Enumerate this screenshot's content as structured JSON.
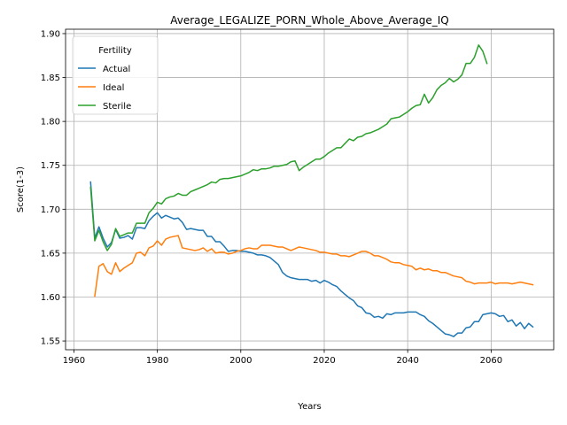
{
  "chart_data": {
    "type": "line",
    "title": "Average_LEGALIZE_PORN_Whole_Above_Average_IQ",
    "xlabel": "Years",
    "ylabel": "Score(1-3)",
    "xlim": [
      1958,
      2075
    ],
    "ylim": [
      1.54,
      1.905
    ],
    "xticks": [
      1960,
      1980,
      2000,
      2020,
      2040,
      2060
    ],
    "yticks": [
      1.55,
      1.6,
      1.65,
      1.7,
      1.75,
      1.8,
      1.85,
      1.9
    ],
    "ytick_labels": [
      "1.55",
      "1.60",
      "1.65",
      "1.70",
      "1.75",
      "1.80",
      "1.85",
      "1.90"
    ],
    "grid": true,
    "legend": {
      "title": "Fertility",
      "placement": "upper-left"
    },
    "series": [
      {
        "name": "Actual",
        "color": "#1f77b4",
        "points": [
          [
            1964,
            1.731
          ],
          [
            1965,
            1.667
          ],
          [
            1966,
            1.68
          ],
          [
            1967,
            1.667
          ],
          [
            1968,
            1.657
          ],
          [
            1969,
            1.662
          ],
          [
            1970,
            1.677
          ],
          [
            1971,
            1.667
          ],
          [
            1972,
            1.668
          ],
          [
            1973,
            1.67
          ],
          [
            1974,
            1.666
          ],
          [
            1975,
            1.679
          ],
          [
            1976,
            1.679
          ],
          [
            1977,
            1.678
          ],
          [
            1978,
            1.687
          ],
          [
            1979,
            1.692
          ],
          [
            1980,
            1.696
          ],
          [
            1981,
            1.69
          ],
          [
            1982,
            1.693
          ],
          [
            1983,
            1.691
          ],
          [
            1984,
            1.689
          ],
          [
            1985,
            1.69
          ],
          [
            1986,
            1.685
          ],
          [
            1987,
            1.677
          ],
          [
            1988,
            1.678
          ],
          [
            1989,
            1.677
          ],
          [
            1990,
            1.676
          ],
          [
            1991,
            1.676
          ],
          [
            1992,
            1.669
          ],
          [
            1993,
            1.669
          ],
          [
            1994,
            1.663
          ],
          [
            1995,
            1.663
          ],
          [
            1996,
            1.658
          ],
          [
            1997,
            1.652
          ],
          [
            1998,
            1.653
          ],
          [
            1999,
            1.653
          ],
          [
            2000,
            1.652
          ],
          [
            2001,
            1.652
          ],
          [
            2002,
            1.651
          ],
          [
            2003,
            1.65
          ],
          [
            2004,
            1.648
          ],
          [
            2005,
            1.648
          ],
          [
            2006,
            1.647
          ],
          [
            2007,
            1.645
          ],
          [
            2008,
            1.641
          ],
          [
            2009,
            1.637
          ],
          [
            2010,
            1.628
          ],
          [
            2011,
            1.624
          ],
          [
            2012,
            1.622
          ],
          [
            2013,
            1.621
          ],
          [
            2014,
            1.62
          ],
          [
            2015,
            1.62
          ],
          [
            2016,
            1.62
          ],
          [
            2017,
            1.618
          ],
          [
            2018,
            1.619
          ],
          [
            2019,
            1.616
          ],
          [
            2020,
            1.619
          ],
          [
            2021,
            1.617
          ],
          [
            2022,
            1.614
          ],
          [
            2023,
            1.612
          ],
          [
            2024,
            1.607
          ],
          [
            2025,
            1.603
          ],
          [
            2026,
            1.599
          ],
          [
            2027,
            1.596
          ],
          [
            2028,
            1.59
          ],
          [
            2029,
            1.588
          ],
          [
            2030,
            1.582
          ],
          [
            2031,
            1.581
          ],
          [
            2032,
            1.577
          ],
          [
            2033,
            1.578
          ],
          [
            2034,
            1.576
          ],
          [
            2035,
            1.581
          ],
          [
            2036,
            1.58
          ],
          [
            2037,
            1.582
          ],
          [
            2038,
            1.582
          ],
          [
            2039,
            1.582
          ],
          [
            2040,
            1.583
          ],
          [
            2041,
            1.583
          ],
          [
            2042,
            1.583
          ],
          [
            2043,
            1.58
          ],
          [
            2044,
            1.578
          ],
          [
            2045,
            1.573
          ],
          [
            2046,
            1.57
          ],
          [
            2047,
            1.566
          ],
          [
            2048,
            1.562
          ],
          [
            2049,
            1.558
          ],
          [
            2050,
            1.557
          ],
          [
            2051,
            1.555
          ],
          [
            2052,
            1.559
          ],
          [
            2053,
            1.559
          ],
          [
            2054,
            1.565
          ],
          [
            2055,
            1.566
          ],
          [
            2056,
            1.572
          ],
          [
            2057,
            1.572
          ],
          [
            2058,
            1.58
          ],
          [
            2059,
            1.581
          ],
          [
            2060,
            1.582
          ],
          [
            2061,
            1.581
          ],
          [
            2062,
            1.578
          ],
          [
            2063,
            1.579
          ],
          [
            2064,
            1.572
          ],
          [
            2065,
            1.574
          ],
          [
            2066,
            1.567
          ],
          [
            2067,
            1.571
          ],
          [
            2068,
            1.564
          ],
          [
            2069,
            1.57
          ],
          [
            2070,
            1.566
          ]
        ]
      },
      {
        "name": "Ideal",
        "color": "#ff7f0e",
        "points": [
          [
            1965,
            1.601
          ],
          [
            1966,
            1.635
          ],
          [
            1967,
            1.638
          ],
          [
            1968,
            1.629
          ],
          [
            1969,
            1.626
          ],
          [
            1970,
            1.639
          ],
          [
            1971,
            1.629
          ],
          [
            1972,
            1.633
          ],
          [
            1973,
            1.636
          ],
          [
            1974,
            1.639
          ],
          [
            1975,
            1.65
          ],
          [
            1976,
            1.651
          ],
          [
            1977,
            1.647
          ],
          [
            1978,
            1.656
          ],
          [
            1979,
            1.658
          ],
          [
            1980,
            1.664
          ],
          [
            1981,
            1.659
          ],
          [
            1982,
            1.666
          ],
          [
            1983,
            1.668
          ],
          [
            1984,
            1.669
          ],
          [
            1985,
            1.67
          ],
          [
            1986,
            1.656
          ],
          [
            1987,
            1.655
          ],
          [
            1988,
            1.654
          ],
          [
            1989,
            1.653
          ],
          [
            1990,
            1.654
          ],
          [
            1991,
            1.656
          ],
          [
            1992,
            1.652
          ],
          [
            1993,
            1.655
          ],
          [
            1994,
            1.65
          ],
          [
            1995,
            1.651
          ],
          [
            1996,
            1.651
          ],
          [
            1997,
            1.649
          ],
          [
            1998,
            1.65
          ],
          [
            1999,
            1.652
          ],
          [
            2000,
            1.653
          ],
          [
            2001,
            1.655
          ],
          [
            2002,
            1.656
          ],
          [
            2003,
            1.655
          ],
          [
            2004,
            1.655
          ],
          [
            2005,
            1.659
          ],
          [
            2006,
            1.659
          ],
          [
            2007,
            1.659
          ],
          [
            2008,
            1.658
          ],
          [
            2009,
            1.657
          ],
          [
            2010,
            1.657
          ],
          [
            2011,
            1.655
          ],
          [
            2012,
            1.653
          ],
          [
            2013,
            1.655
          ],
          [
            2014,
            1.657
          ],
          [
            2015,
            1.656
          ],
          [
            2016,
            1.655
          ],
          [
            2017,
            1.654
          ],
          [
            2018,
            1.653
          ],
          [
            2019,
            1.651
          ],
          [
            2020,
            1.651
          ],
          [
            2021,
            1.65
          ],
          [
            2022,
            1.649
          ],
          [
            2023,
            1.649
          ],
          [
            2024,
            1.647
          ],
          [
            2025,
            1.647
          ],
          [
            2026,
            1.646
          ],
          [
            2027,
            1.648
          ],
          [
            2028,
            1.65
          ],
          [
            2029,
            1.652
          ],
          [
            2030,
            1.652
          ],
          [
            2031,
            1.65
          ],
          [
            2032,
            1.647
          ],
          [
            2033,
            1.647
          ],
          [
            2034,
            1.645
          ],
          [
            2035,
            1.643
          ],
          [
            2036,
            1.64
          ],
          [
            2037,
            1.639
          ],
          [
            2038,
            1.639
          ],
          [
            2039,
            1.637
          ],
          [
            2040,
            1.636
          ],
          [
            2041,
            1.635
          ],
          [
            2042,
            1.631
          ],
          [
            2043,
            1.633
          ],
          [
            2044,
            1.631
          ],
          [
            2045,
            1.632
          ],
          [
            2046,
            1.63
          ],
          [
            2047,
            1.63
          ],
          [
            2048,
            1.628
          ],
          [
            2049,
            1.628
          ],
          [
            2050,
            1.626
          ],
          [
            2051,
            1.624
          ],
          [
            2052,
            1.623
          ],
          [
            2053,
            1.622
          ],
          [
            2054,
            1.618
          ],
          [
            2055,
            1.617
          ],
          [
            2056,
            1.615
          ],
          [
            2057,
            1.616
          ],
          [
            2058,
            1.616
          ],
          [
            2059,
            1.616
          ],
          [
            2060,
            1.617
          ],
          [
            2061,
            1.615
          ],
          [
            2062,
            1.616
          ],
          [
            2063,
            1.616
          ],
          [
            2064,
            1.616
          ],
          [
            2065,
            1.615
          ],
          [
            2066,
            1.616
          ],
          [
            2067,
            1.617
          ],
          [
            2068,
            1.616
          ],
          [
            2069,
            1.615
          ],
          [
            2070,
            1.614
          ]
        ]
      },
      {
        "name": "Sterile",
        "color": "#2ca02c",
        "points": [
          [
            1964,
            1.725
          ],
          [
            1965,
            1.664
          ],
          [
            1966,
            1.676
          ],
          [
            1967,
            1.663
          ],
          [
            1968,
            1.653
          ],
          [
            1969,
            1.66
          ],
          [
            1970,
            1.678
          ],
          [
            1971,
            1.669
          ],
          [
            1972,
            1.671
          ],
          [
            1973,
            1.673
          ],
          [
            1974,
            1.673
          ],
          [
            1975,
            1.684
          ],
          [
            1976,
            1.684
          ],
          [
            1977,
            1.684
          ],
          [
            1978,
            1.696
          ],
          [
            1979,
            1.701
          ],
          [
            1980,
            1.708
          ],
          [
            1981,
            1.706
          ],
          [
            1982,
            1.712
          ],
          [
            1983,
            1.714
          ],
          [
            1984,
            1.715
          ],
          [
            1985,
            1.718
          ],
          [
            1986,
            1.716
          ],
          [
            1987,
            1.716
          ],
          [
            1988,
            1.72
          ],
          [
            1989,
            1.722
          ],
          [
            1990,
            1.724
          ],
          [
            1991,
            1.726
          ],
          [
            1992,
            1.728
          ],
          [
            1993,
            1.731
          ],
          [
            1994,
            1.73
          ],
          [
            1995,
            1.734
          ],
          [
            1996,
            1.735
          ],
          [
            1997,
            1.735
          ],
          [
            1998,
            1.736
          ],
          [
            1999,
            1.737
          ],
          [
            2000,
            1.738
          ],
          [
            2001,
            1.74
          ],
          [
            2002,
            1.742
          ],
          [
            2003,
            1.745
          ],
          [
            2004,
            1.744
          ],
          [
            2005,
            1.746
          ],
          [
            2006,
            1.746
          ],
          [
            2007,
            1.747
          ],
          [
            2008,
            1.749
          ],
          [
            2009,
            1.749
          ],
          [
            2010,
            1.75
          ],
          [
            2011,
            1.751
          ],
          [
            2012,
            1.754
          ],
          [
            2013,
            1.755
          ],
          [
            2014,
            1.744
          ],
          [
            2015,
            1.748
          ],
          [
            2016,
            1.751
          ],
          [
            2017,
            1.754
          ],
          [
            2018,
            1.757
          ],
          [
            2019,
            1.757
          ],
          [
            2020,
            1.76
          ],
          [
            2021,
            1.764
          ],
          [
            2022,
            1.767
          ],
          [
            2023,
            1.77
          ],
          [
            2024,
            1.77
          ],
          [
            2025,
            1.775
          ],
          [
            2026,
            1.78
          ],
          [
            2027,
            1.778
          ],
          [
            2028,
            1.782
          ],
          [
            2029,
            1.783
          ],
          [
            2030,
            1.786
          ],
          [
            2031,
            1.787
          ],
          [
            2032,
            1.789
          ],
          [
            2033,
            1.791
          ],
          [
            2034,
            1.794
          ],
          [
            2035,
            1.797
          ],
          [
            2036,
            1.803
          ],
          [
            2037,
            1.804
          ],
          [
            2038,
            1.805
          ],
          [
            2039,
            1.808
          ],
          [
            2040,
            1.811
          ],
          [
            2041,
            1.815
          ],
          [
            2042,
            1.818
          ],
          [
            2043,
            1.819
          ],
          [
            2044,
            1.831
          ],
          [
            2045,
            1.821
          ],
          [
            2046,
            1.827
          ],
          [
            2047,
            1.836
          ],
          [
            2048,
            1.841
          ],
          [
            2049,
            1.844
          ],
          [
            2050,
            1.849
          ],
          [
            2051,
            1.845
          ],
          [
            2052,
            1.848
          ],
          [
            2053,
            1.853
          ],
          [
            2054,
            1.866
          ],
          [
            2055,
            1.866
          ],
          [
            2056,
            1.873
          ],
          [
            2057,
            1.887
          ],
          [
            2058,
            1.88
          ],
          [
            2059,
            1.866
          ]
        ]
      }
    ]
  }
}
